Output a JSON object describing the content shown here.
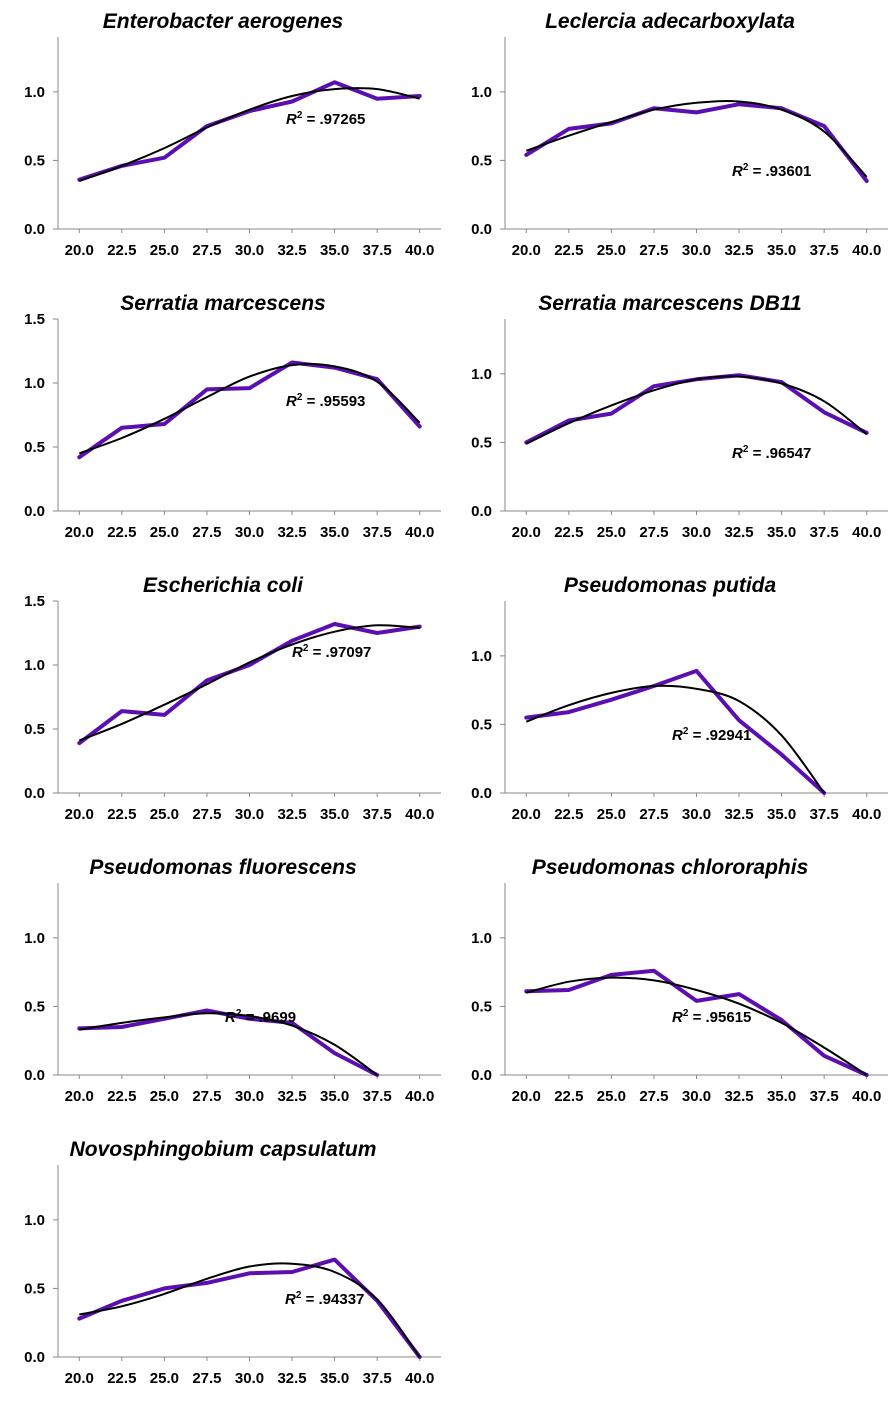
{
  "chart_data": [
    {
      "type": "line",
      "title": "Enterobacter aerogenes",
      "x": [
        20.0,
        22.5,
        25.0,
        27.5,
        30.0,
        32.5,
        35.0,
        37.5,
        40.0
      ],
      "x_tick_labels": [
        "20.0",
        "22.5",
        "25.0",
        "27.5",
        "30.0",
        "32.5",
        "35.0",
        "37.5",
        "40.0"
      ],
      "y_tick_labels": [
        "0.0",
        "0.5",
        "1.0"
      ],
      "ylim": [
        0,
        1.4
      ],
      "series": [
        {
          "values": [
            0.36,
            0.46,
            0.52,
            0.75,
            0.86,
            0.93,
            1.07,
            0.95,
            0.97
          ],
          "color": "#5B0FB0"
        }
      ],
      "fit": {
        "type": "polynomial",
        "values": [
          0.35,
          0.46,
          0.59,
          0.74,
          0.87,
          0.97,
          1.02,
          1.02,
          0.95
        ],
        "color": "#000000"
      },
      "r2_label": ".97265",
      "r2_position": "center-right"
    },
    {
      "type": "line",
      "title": "Leclercia adecarboxylata",
      "x": [
        20.0,
        22.5,
        25.0,
        27.5,
        30.0,
        32.5,
        35.0,
        37.5,
        40.0
      ],
      "x_tick_labels": [
        "20.0",
        "22.5",
        "25.0",
        "27.5",
        "30.0",
        "32.5",
        "35.0",
        "37.5",
        "40.0"
      ],
      "y_tick_labels": [
        "0.0",
        "0.5",
        "1.0"
      ],
      "ylim": [
        0,
        1.4
      ],
      "series": [
        {
          "values": [
            0.54,
            0.73,
            0.77,
            0.88,
            0.85,
            0.91,
            0.88,
            0.75,
            0.35
          ],
          "color": "#5B0FB0"
        }
      ],
      "fit": {
        "type": "polynomial",
        "values": [
          0.57,
          0.68,
          0.78,
          0.87,
          0.92,
          0.93,
          0.87,
          0.71,
          0.38
        ],
        "color": "#000000"
      },
      "r2_label": ".93601",
      "r2_position": "lower-right"
    },
    {
      "type": "line",
      "title": "Serratia marcescens",
      "x": [
        20.0,
        22.5,
        25.0,
        27.5,
        30.0,
        32.5,
        35.0,
        37.5,
        40.0
      ],
      "x_tick_labels": [
        "20.0",
        "22.5",
        "25.0",
        "27.5",
        "30.0",
        "32.5",
        "35.0",
        "37.5",
        "40.0"
      ],
      "y_tick_labels": [
        "0.0",
        "0.5",
        "1.0",
        "1.5"
      ],
      "ylim": [
        0,
        1.5
      ],
      "series": [
        {
          "values": [
            0.42,
            0.65,
            0.68,
            0.95,
            0.96,
            1.16,
            1.12,
            1.03,
            0.66
          ],
          "color": "#5B0FB0"
        }
      ],
      "fit": {
        "type": "polynomial",
        "values": [
          0.45,
          0.57,
          0.72,
          0.89,
          1.05,
          1.14,
          1.13,
          1.01,
          0.69
        ],
        "color": "#000000"
      },
      "r2_label": ".95593",
      "r2_position": "center-right"
    },
    {
      "type": "line",
      "title": "Serratia marcescens DB11",
      "x": [
        20.0,
        22.5,
        25.0,
        27.5,
        30.0,
        32.5,
        35.0,
        37.5,
        40.0
      ],
      "x_tick_labels": [
        "20.0",
        "22.5",
        "25.0",
        "27.5",
        "30.0",
        "32.5",
        "35.0",
        "37.5",
        "40.0"
      ],
      "y_tick_labels": [
        "0.0",
        "0.5",
        "1.0"
      ],
      "ylim": [
        0,
        1.4
      ],
      "series": [
        {
          "values": [
            0.5,
            0.66,
            0.71,
            0.91,
            0.96,
            0.99,
            0.94,
            0.72,
            0.57
          ],
          "color": "#5B0FB0"
        }
      ],
      "fit": {
        "type": "polynomial",
        "values": [
          0.49,
          0.64,
          0.77,
          0.88,
          0.96,
          0.98,
          0.93,
          0.8,
          0.56
        ],
        "color": "#000000"
      },
      "r2_label": ".96547",
      "r2_position": "lower-right"
    },
    {
      "type": "line",
      "title": "Escherichia coli",
      "x": [
        20.0,
        22.5,
        25.0,
        27.5,
        30.0,
        32.5,
        35.0,
        37.5,
        40.0
      ],
      "x_tick_labels": [
        "20.0",
        "22.5",
        "25.0",
        "27.5",
        "30.0",
        "32.5",
        "35.0",
        "37.5",
        "40.0"
      ],
      "y_tick_labels": [
        "0.0",
        "0.5",
        "1.0",
        "1.5"
      ],
      "ylim": [
        0,
        1.5
      ],
      "series": [
        {
          "values": [
            0.39,
            0.64,
            0.61,
            0.88,
            1.0,
            1.19,
            1.32,
            1.25,
            1.3
          ],
          "color": "#5B0FB0"
        }
      ],
      "fit": {
        "type": "polynomial",
        "values": [
          0.41,
          0.54,
          0.69,
          0.85,
          1.02,
          1.16,
          1.26,
          1.31,
          1.29
        ],
        "color": "#000000"
      },
      "r2_label": ".97097",
      "r2_position": "upper-right"
    },
    {
      "type": "line",
      "title": "Pseudomonas putida",
      "x": [
        20.0,
        22.5,
        25.0,
        27.5,
        30.0,
        32.5,
        35.0,
        37.5
      ],
      "x_tick_labels": [
        "20.0",
        "22.5",
        "25.0",
        "27.5",
        "30.0",
        "32.5",
        "35.0",
        "37.5",
        "40.0"
      ],
      "y_tick_labels": [
        "0.0",
        "0.5",
        "1.0"
      ],
      "ylim": [
        0,
        1.4
      ],
      "series": [
        {
          "values": [
            0.55,
            0.59,
            0.68,
            0.78,
            0.89,
            0.53,
            0.28,
            0.0
          ],
          "color": "#5B0FB0"
        }
      ],
      "fit": {
        "type": "polynomial",
        "values": [
          0.52,
          0.64,
          0.73,
          0.78,
          0.76,
          0.67,
          0.42,
          0.0
        ],
        "color": "#000000"
      },
      "r2_label": ".92941",
      "r2_position": "lower-center"
    },
    {
      "type": "line",
      "title": "Pseudomonas fluorescens",
      "x": [
        20.0,
        22.5,
        25.0,
        27.5,
        30.0,
        32.5,
        35.0,
        37.5
      ],
      "x_tick_labels": [
        "20.0",
        "22.5",
        "25.0",
        "27.5",
        "30.0",
        "32.5",
        "35.0",
        "37.5",
        "40.0"
      ],
      "y_tick_labels": [
        "0.0",
        "0.5",
        "1.0"
      ],
      "ylim": [
        0,
        1.4
      ],
      "series": [
        {
          "values": [
            0.34,
            0.35,
            0.41,
            0.47,
            0.41,
            0.38,
            0.16,
            0.0
          ],
          "color": "#5B0FB0"
        }
      ],
      "fit": {
        "type": "polynomial",
        "values": [
          0.33,
          0.38,
          0.42,
          0.45,
          0.43,
          0.36,
          0.22,
          0.0
        ],
        "color": "#000000"
      },
      "r2_label": ".9699",
      "r2_position": "lower-center"
    },
    {
      "type": "line",
      "title": "Pseudomonas chlororaphis",
      "x": [
        20.0,
        22.5,
        25.0,
        27.5,
        30.0,
        32.5,
        35.0,
        37.5,
        40.0
      ],
      "x_tick_labels": [
        "20.0",
        "22.5",
        "25.0",
        "27.5",
        "30.0",
        "32.5",
        "35.0",
        "37.5",
        "40.0"
      ],
      "y_tick_labels": [
        "0.0",
        "0.5",
        "1.0"
      ],
      "ylim": [
        0,
        1.4
      ],
      "series": [
        {
          "values": [
            0.61,
            0.62,
            0.73,
            0.76,
            0.54,
            0.59,
            0.4,
            0.14,
            0.0
          ],
          "color": "#5B0FB0"
        }
      ],
      "fit": {
        "type": "polynomial",
        "values": [
          0.6,
          0.68,
          0.71,
          0.69,
          0.62,
          0.52,
          0.38,
          0.2,
          0.0
        ],
        "color": "#000000"
      },
      "r2_label": ".95615",
      "r2_position": "lower-center"
    },
    {
      "type": "line",
      "title": "Novosphingobium capsulatum",
      "x": [
        20.0,
        22.5,
        25.0,
        27.5,
        30.0,
        32.5,
        35.0,
        37.5,
        40.0
      ],
      "x_tick_labels": [
        "20.0",
        "22.5",
        "25.0",
        "27.5",
        "30.0",
        "32.5",
        "35.0",
        "37.5",
        "40.0"
      ],
      "y_tick_labels": [
        "0.0",
        "0.5",
        "1.0"
      ],
      "ylim": [
        0,
        1.4
      ],
      "series": [
        {
          "values": [
            0.28,
            0.41,
            0.5,
            0.54,
            0.61,
            0.62,
            0.71,
            0.41,
            0.0
          ],
          "color": "#5B0FB0"
        }
      ],
      "fit": {
        "type": "polynomial",
        "values": [
          0.31,
          0.37,
          0.46,
          0.57,
          0.66,
          0.68,
          0.62,
          0.42,
          0.0
        ],
        "color": "#000000"
      },
      "r2_label": ".94337",
      "r2_position": "lower-right"
    }
  ]
}
